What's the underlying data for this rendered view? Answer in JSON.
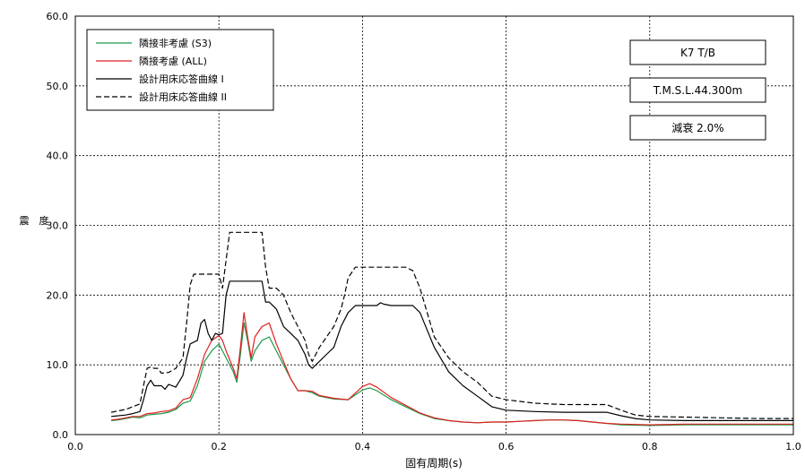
{
  "chart_data": {
    "type": "line",
    "xlabel": "固有周期(s)",
    "ylabel": "震　度",
    "xlim": [
      0.0,
      1.0
    ],
    "ylim": [
      0.0,
      60.0
    ],
    "xticks": [
      "0.0",
      "0.2",
      "0.4",
      "0.6",
      "0.8",
      "1.0"
    ],
    "yticks": [
      "0.0",
      "10.0",
      "20.0",
      "30.0",
      "40.0",
      "50.0",
      "60.0"
    ],
    "grid": true,
    "legend_position": "top-left",
    "info_boxes": [
      "K7 T/B",
      "T.M.S.L.44.300m",
      "減衰  2.0%"
    ],
    "series": [
      {
        "name": "隣接非考慮 (S3)",
        "color": "#1a9a4a",
        "dash": "solid",
        "x": [
          0.05,
          0.06,
          0.07,
          0.08,
          0.09,
          0.095,
          0.1,
          0.11,
          0.12,
          0.13,
          0.14,
          0.15,
          0.16,
          0.17,
          0.18,
          0.19,
          0.2,
          0.205,
          0.21,
          0.22,
          0.225,
          0.23,
          0.235,
          0.24,
          0.245,
          0.25,
          0.26,
          0.27,
          0.28,
          0.29,
          0.3,
          0.31,
          0.32,
          0.33,
          0.34,
          0.36,
          0.38,
          0.4,
          0.41,
          0.42,
          0.44,
          0.46,
          0.48,
          0.5,
          0.52,
          0.54,
          0.56,
          0.58,
          0.6,
          0.62,
          0.64,
          0.66,
          0.68,
          0.7,
          0.72,
          0.74,
          0.76,
          0.8,
          0.85,
          0.9,
          0.95,
          1.0
        ],
        "values": [
          2.0,
          2.1,
          2.3,
          2.5,
          2.4,
          2.6,
          2.8,
          2.9,
          3.0,
          3.2,
          3.6,
          4.5,
          4.8,
          7.0,
          10.5,
          12.0,
          13.0,
          12.0,
          11.0,
          9.0,
          7.5,
          11.5,
          16.0,
          13.5,
          10.5,
          12.0,
          13.5,
          14.0,
          12.0,
          10.0,
          8.0,
          6.3,
          6.3,
          6.0,
          5.5,
          5.1,
          5.0,
          6.4,
          6.7,
          6.3,
          5.0,
          4.0,
          3.0,
          2.3,
          2.0,
          1.8,
          1.7,
          1.8,
          1.8,
          1.9,
          2.0,
          2.1,
          2.1,
          2.0,
          1.8,
          1.6,
          1.4,
          1.3,
          1.4,
          1.4,
          1.4,
          1.4
        ]
      },
      {
        "name": "隣接考慮 (ALL)",
        "color": "#e02020",
        "dash": "solid",
        "x": [
          0.05,
          0.06,
          0.07,
          0.08,
          0.09,
          0.095,
          0.1,
          0.11,
          0.12,
          0.13,
          0.14,
          0.15,
          0.16,
          0.17,
          0.18,
          0.19,
          0.2,
          0.205,
          0.21,
          0.22,
          0.225,
          0.23,
          0.235,
          0.24,
          0.245,
          0.25,
          0.26,
          0.27,
          0.28,
          0.29,
          0.3,
          0.31,
          0.32,
          0.33,
          0.34,
          0.36,
          0.38,
          0.4,
          0.41,
          0.42,
          0.44,
          0.46,
          0.48,
          0.5,
          0.52,
          0.54,
          0.56,
          0.58,
          0.6,
          0.62,
          0.64,
          0.66,
          0.68,
          0.7,
          0.72,
          0.74,
          0.76,
          0.8,
          0.85,
          0.9,
          0.95,
          1.0
        ],
        "values": [
          2.1,
          2.2,
          2.4,
          2.6,
          2.6,
          2.8,
          3.0,
          3.1,
          3.3,
          3.4,
          3.8,
          5.0,
          5.3,
          8.0,
          11.5,
          13.5,
          14.2,
          13.5,
          12.0,
          9.5,
          8.0,
          12.5,
          17.5,
          14.0,
          11.0,
          14.0,
          15.5,
          16.0,
          13.0,
          10.5,
          8.0,
          6.3,
          6.3,
          6.2,
          5.6,
          5.2,
          5.0,
          6.9,
          7.3,
          6.8,
          5.3,
          4.2,
          3.1,
          2.4,
          2.0,
          1.8,
          1.7,
          1.8,
          1.8,
          1.9,
          2.0,
          2.1,
          2.1,
          2.0,
          1.8,
          1.6,
          1.5,
          1.4,
          1.5,
          1.5,
          1.5,
          1.5
        ]
      },
      {
        "name": "設計用床応答曲線 I",
        "color": "#000000",
        "dash": "solid",
        "x": [
          0.05,
          0.07,
          0.08,
          0.09,
          0.095,
          0.1,
          0.105,
          0.11,
          0.12,
          0.125,
          0.13,
          0.14,
          0.15,
          0.155,
          0.16,
          0.17,
          0.175,
          0.18,
          0.185,
          0.19,
          0.195,
          0.2,
          0.205,
          0.21,
          0.215,
          0.22,
          0.26,
          0.265,
          0.27,
          0.28,
          0.29,
          0.3,
          0.31,
          0.32,
          0.325,
          0.33,
          0.34,
          0.35,
          0.36,
          0.37,
          0.38,
          0.39,
          0.4,
          0.42,
          0.425,
          0.43,
          0.44,
          0.46,
          0.47,
          0.48,
          0.49,
          0.5,
          0.52,
          0.54,
          0.56,
          0.58,
          0.6,
          0.64,
          0.68,
          0.72,
          0.74,
          0.76,
          0.78,
          0.8,
          0.85,
          0.9,
          0.95,
          1.0
        ],
        "values": [
          2.6,
          2.8,
          3.0,
          3.3,
          5.0,
          7.0,
          7.8,
          7.0,
          7.0,
          6.5,
          7.2,
          6.8,
          8.5,
          11.0,
          13.0,
          13.5,
          16.0,
          16.5,
          14.5,
          13.5,
          14.5,
          14.3,
          14.5,
          20.0,
          22.0,
          22.0,
          22.0,
          19.0,
          19.0,
          18.0,
          15.5,
          14.5,
          13.5,
          11.5,
          10.0,
          9.5,
          10.5,
          11.5,
          12.5,
          15.5,
          17.5,
          18.5,
          18.5,
          18.5,
          18.9,
          18.7,
          18.5,
          18.5,
          18.5,
          17.5,
          15.0,
          12.5,
          9.0,
          7.0,
          5.5,
          4.0,
          3.5,
          3.3,
          3.2,
          3.2,
          3.2,
          2.7,
          2.3,
          2.1,
          2.0,
          2.0,
          2.0,
          2.0
        ]
      },
      {
        "name": "設計用床応答曲線 II",
        "color": "#000000",
        "dash": "dashed",
        "x": [
          0.05,
          0.07,
          0.08,
          0.09,
          0.095,
          0.1,
          0.105,
          0.11,
          0.115,
          0.12,
          0.13,
          0.14,
          0.15,
          0.155,
          0.16,
          0.165,
          0.2,
          0.205,
          0.21,
          0.215,
          0.22,
          0.26,
          0.265,
          0.27,
          0.28,
          0.29,
          0.3,
          0.31,
          0.32,
          0.325,
          0.33,
          0.34,
          0.35,
          0.36,
          0.37,
          0.375,
          0.38,
          0.39,
          0.4,
          0.46,
          0.47,
          0.48,
          0.49,
          0.5,
          0.52,
          0.54,
          0.56,
          0.58,
          0.6,
          0.64,
          0.68,
          0.72,
          0.74,
          0.76,
          0.78,
          0.8,
          0.85,
          0.9,
          0.95,
          1.0
        ],
        "values": [
          3.2,
          3.6,
          4.0,
          4.4,
          7.0,
          9.5,
          9.7,
          9.5,
          9.5,
          8.8,
          8.9,
          9.5,
          11.0,
          16.0,
          21.5,
          23.0,
          23.0,
          21.0,
          25.0,
          29.0,
          29.0,
          29.0,
          24.0,
          21.0,
          21.0,
          20.0,
          17.5,
          15.5,
          13.5,
          11.5,
          10.5,
          12.5,
          14.0,
          15.5,
          18.0,
          20.0,
          22.5,
          24.0,
          24.0,
          24.0,
          23.5,
          21.0,
          17.5,
          14.0,
          11.0,
          9.0,
          7.5,
          5.5,
          5.0,
          4.5,
          4.3,
          4.3,
          4.3,
          3.5,
          2.8,
          2.6,
          2.5,
          2.4,
          2.3,
          2.3
        ]
      }
    ]
  }
}
